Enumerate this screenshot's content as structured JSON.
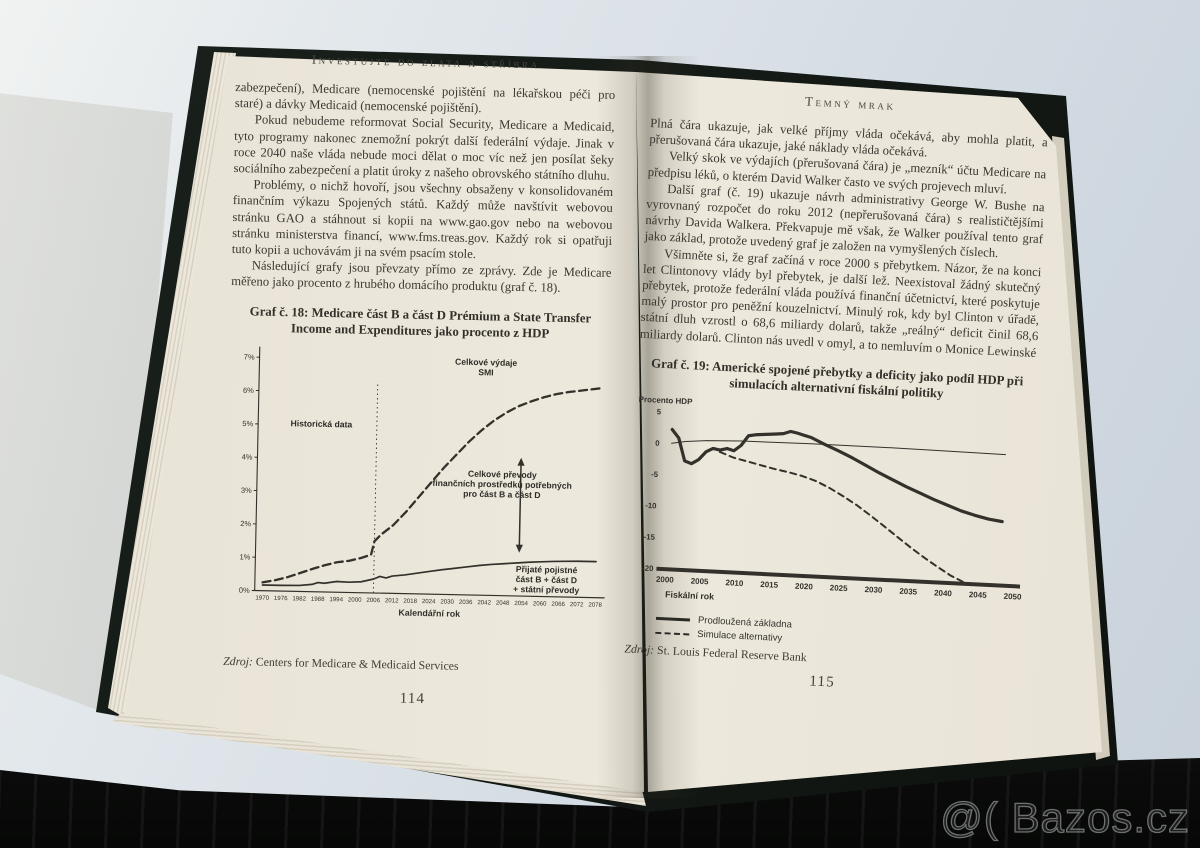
{
  "scene": {
    "watermark": "@( Bazos.cz",
    "colors": {
      "paper": "#ece8dc",
      "ink": "#3c3731",
      "cover": "#161b17",
      "background": "#d7dfe6",
      "foreground": "#0b0c0b"
    }
  },
  "left_page": {
    "running_header": "Investujte do zlata a stříbra",
    "paragraphs": [
      "zabezpečení), Medicare (nemocenské pojištění na lékařskou péči pro staré) a dávky Medicaid (nemocenské pojištění).",
      "Pokud nebudeme reformovat Social Security, Medicare a Medicaid, tyto programy nakonec znemožní pokrýt další federální výdaje. Jinak v roce 2040 naše vláda nebude moci dělat o moc víc než jen posílat šeky sociálního zabezpečení a platit úroky z našeho obrovského státního dluhu.",
      "Problémy, o nichž hovoří, jsou všechny obsaženy v konsolidovaném finančním výkazu Spojených států. Každý může navštívit webovou stránku GAO a stáhnout si kopii na www.gao.gov nebo na webovou stránku ministerstva financí, www.fms.treas.gov. Každý rok si opatřuji tuto kopii a uchovávám ji na svém psacím stole.",
      "Následující grafy jsou převzaty přímo ze zprávy. Zde je Medicare měřeno jako procento z hrubého domácího produktu (graf č. 18)."
    ],
    "chart_title": "Graf č. 18: Medicare část B a část D Prémium a State Transfer Income and Expenditures jako procento z HDP",
    "source_label": "Zdroj:",
    "source": " Centers for Medicare & Medicaid Services",
    "page_number": "114"
  },
  "right_page": {
    "running_header": "Temný mrak",
    "paragraphs": [
      "Plná čára ukazuje, jak velké příjmy vláda očekává, aby mohla platit, a přerušovaná čára ukazuje, jaké náklady vláda očekává.",
      "Velký skok ve výdajích (přerušovaná čára) je „mezník“ účtu Medicare na předpisu léků, o kterém David Walker často ve svých projevech mluví.",
      "Další graf (č. 19) ukazuje návrh administrativy George W. Bushe na vyrovnaný rozpočet do roku 2012 (nepřerušovaná čára) s realističtějšími návrhy Davida Walkera. Překvapuje mě však, že Walker používal tento graf jako základ, protože uvedený graf je založen na vymyšlených číslech.",
      "Všimněte si, že graf začíná v roce 2000 s přebytkem. Názor, že na konci let Clintonovy vlády byl přebytek, je další lež. Neexistoval žádný skutečný přebytek, protože federální vláda používá finanční účetnictví, které poskytuje malý prostor pro peněžní kouzelnictví. Minulý rok, kdy byl Clinton v úřadě, státní dluh vzrostl o 68,6 miliardy dolarů, takže „reálný“ deficit činil 68,6 miliardy dolarů. Clinton nás uvedl v omyl, a to nemluvím o Monice Lewinské"
    ],
    "chart_title": "Graf č. 19: Americké spojené přebytky a deficity jako podíl HDP při simulacích alternativní fiskální politiky",
    "source_label": "Zdroj:",
    "source": " St. Louis Federal Reserve Bank",
    "page_number": "115"
  },
  "chart_data": [
    {
      "type": "line",
      "title": "Graf č. 18: Medicare část B a část D Prémium a State Transfer Income and Expenditures jako procento z HDP",
      "xlabel": "Kalendářní rok",
      "ylabel": "",
      "xlim": [
        1967.5,
        2081
      ],
      "ylim": [
        0,
        7.2
      ],
      "y_axis": true,
      "y_suffix": "%",
      "x_ticks": [
        1970,
        1976,
        1982,
        1988,
        1994,
        2000,
        2006,
        2012,
        2018,
        2024,
        2030,
        2036,
        2042,
        2048,
        2054,
        2060,
        2066,
        2072,
        2078
      ],
      "y_ticks": [
        0,
        1,
        2,
        3,
        4,
        5,
        6,
        7
      ],
      "divider_x": 2006,
      "divider_top": 6.35,
      "arrow": {
        "x": 2053,
        "y_top": 4.15,
        "y_bottom": 1.3
      },
      "annotations": [
        {
          "x": 1988,
          "y": 4.95,
          "lines": [
            "Historická data"
          ]
        },
        {
          "x": 2041,
          "y": 6.9,
          "lines": [
            "Celkové výdaje",
            "SMI"
          ]
        },
        {
          "x": 2047,
          "y": 3.55,
          "lines": [
            "Celkové převody",
            "finančních prostředků potřebných",
            "pro část B a část D"
          ]
        },
        {
          "x": 2062,
          "y": 0.72,
          "lines": [
            "Přijaté pojistné",
            "část B + část D",
            "+ státní převody"
          ]
        }
      ],
      "series": [
        {
          "name": "Celkové výdaje SMI",
          "style": "dashed",
          "x": [
            1970,
            1974,
            1978,
            1982,
            1986,
            1990,
            1994,
            1998,
            2002,
            2005,
            2006,
            2008,
            2012,
            2016,
            2020,
            2024,
            2028,
            2032,
            2036,
            2040,
            2044,
            2048,
            2052,
            2056,
            2060,
            2064,
            2068,
            2072,
            2078
          ],
          "values": [
            0.25,
            0.32,
            0.42,
            0.55,
            0.68,
            0.8,
            0.9,
            0.95,
            1.05,
            1.15,
            1.55,
            1.75,
            2.05,
            2.45,
            2.9,
            3.35,
            3.8,
            4.2,
            4.6,
            4.95,
            5.25,
            5.5,
            5.7,
            5.85,
            5.98,
            6.08,
            6.15,
            6.2,
            6.28
          ]
        },
        {
          "name": "Přijaté pojistné část B + část D + státní převody",
          "style": "solid",
          "x": [
            1970,
            1976,
            1982,
            1986,
            1988,
            1990,
            1994,
            1998,
            2002,
            2006,
            2008,
            2010,
            2012,
            2016,
            2020,
            2024,
            2028,
            2032,
            2036,
            2040,
            2044,
            2048,
            2052,
            2056,
            2060,
            2064,
            2068,
            2072,
            2078
          ],
          "values": [
            0.17,
            0.17,
            0.18,
            0.22,
            0.28,
            0.26,
            0.32,
            0.31,
            0.33,
            0.42,
            0.5,
            0.46,
            0.52,
            0.56,
            0.62,
            0.68,
            0.74,
            0.79,
            0.84,
            0.89,
            0.93,
            0.96,
            0.99,
            1.02,
            1.04,
            1.06,
            1.07,
            1.08,
            1.08
          ]
        }
      ]
    },
    {
      "type": "line",
      "title": "Graf č. 19: Americké spojené přebytky a deficity jako podíl HDP při simulacích alternativní fiskální politiky",
      "xlabel": "Fiskální rok",
      "xlabel_align": "start",
      "ylabel": "Procento HDP",
      "xlim": [
        1999,
        2051
      ],
      "ylim": [
        -20,
        5.5
      ],
      "y_axis": false,
      "x_ticks": [
        2000,
        2005,
        2010,
        2015,
        2020,
        2025,
        2030,
        2035,
        2040,
        2045,
        2050
      ],
      "y_ticks": [
        5,
        0,
        -5,
        -10,
        -15,
        -20
      ],
      "legend": [
        "Prodloužená základna",
        "Simulace alternativy"
      ],
      "series": [
        {
          "name": "tenká referenční linie",
          "style": "solid-thin",
          "x": [
            2000,
            2002,
            2005,
            2010,
            2020,
            2030,
            2040,
            2048
          ],
          "values": [
            0.1,
            0.5,
            0.8,
            1.0,
            1.1,
            1.1,
            1.0,
            0.9
          ]
        },
        {
          "name": "Prodloužená základna",
          "style": "solid-thick",
          "x": [
            2000,
            2001,
            2002,
            2003,
            2004,
            2005,
            2006,
            2007,
            2008,
            2009,
            2010,
            2011,
            2012,
            2013,
            2014,
            2015,
            2016,
            2017,
            2018,
            2019,
            2020,
            2022,
            2024,
            2026,
            2028,
            2030,
            2032,
            2034,
            2036,
            2038,
            2040,
            2042,
            2044,
            2046,
            2048
          ],
          "values": [
            2.3,
            1.0,
            -2.6,
            -3.0,
            -2.3,
            -1.0,
            -0.4,
            -0.6,
            -0.3,
            -0.6,
            0.3,
            1.9,
            2.1,
            2.2,
            2.3,
            2.4,
            2.5,
            2.9,
            2.7,
            2.4,
            2.1,
            1.1,
            0.2,
            -0.8,
            -1.9,
            -3.0,
            -4.0,
            -5.0,
            -5.9,
            -6.8,
            -7.6,
            -8.4,
            -9.0,
            -9.5,
            -9.8
          ]
        },
        {
          "name": "Simulace alternativy",
          "style": "dashed",
          "x": [
            2007,
            2009,
            2011,
            2013,
            2015,
            2017,
            2019,
            2021,
            2023,
            2025,
            2027,
            2029,
            2031,
            2033,
            2035,
            2037,
            2039,
            2041,
            2043,
            2044
          ],
          "values": [
            -0.9,
            -1.7,
            -2.2,
            -2.7,
            -3.2,
            -3.6,
            -4.1,
            -4.8,
            -5.8,
            -7.0,
            -8.3,
            -9.8,
            -11.4,
            -13.0,
            -14.6,
            -16.1,
            -17.5,
            -18.8,
            -19.8,
            -20.0
          ]
        }
      ]
    }
  ]
}
